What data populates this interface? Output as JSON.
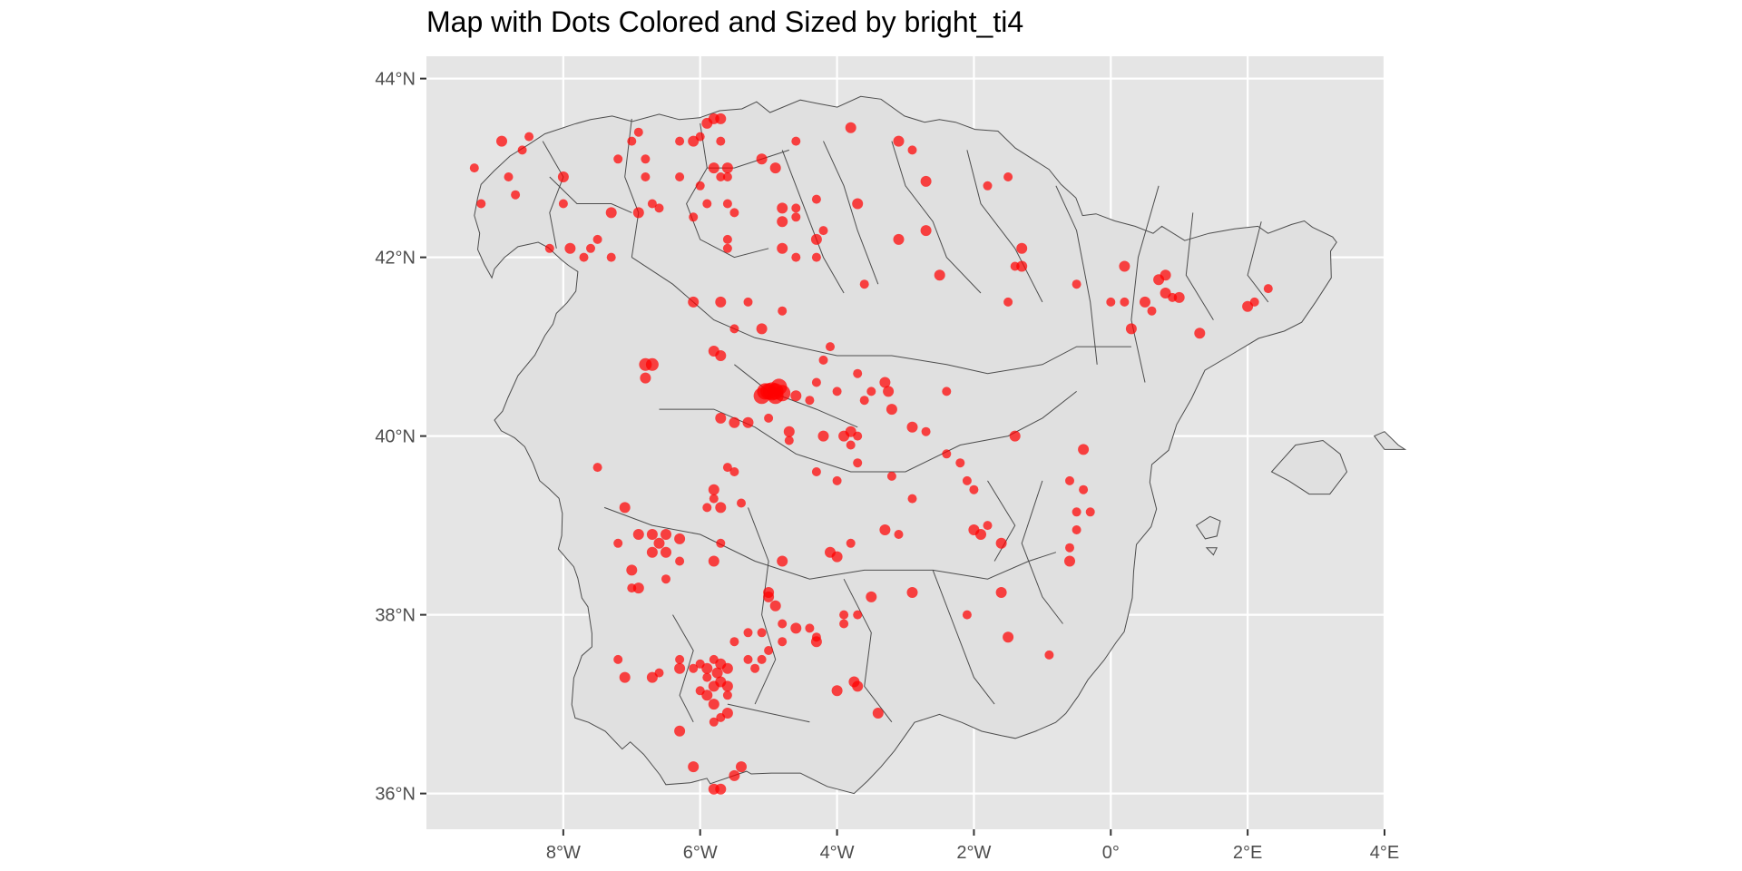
{
  "title": "Map with Dots Colored and Sized by bright_ti4",
  "colors": {
    "panel": "#e5e5e5",
    "grid": "#ffffff",
    "land": "#e0e0e0",
    "border": "#4d4d4d",
    "dot": "#ff0000",
    "text": "#4d4d4d"
  },
  "chart_data": {
    "type": "scatter",
    "title": "Map with Dots Colored and Sized by bright_ti4",
    "xlabel": "",
    "ylabel": "",
    "xlim": [
      -10.0,
      4.0
    ],
    "ylim": [
      35.6,
      44.25
    ],
    "x_ticks": [
      -8,
      -6,
      -4,
      -2,
      0,
      2,
      4
    ],
    "x_tick_labels": [
      "8°W",
      "6°W",
      "4°W",
      "2°W",
      "0°",
      "2°E",
      "4°E"
    ],
    "y_ticks": [
      36,
      38,
      40,
      42,
      44
    ],
    "y_tick_labels": [
      "36°N",
      "38°N",
      "40°N",
      "42°N",
      "44°N"
    ],
    "grid": true,
    "points": [
      [
        -9.3,
        43.0
      ],
      [
        -8.9,
        43.3
      ],
      [
        -8.6,
        43.2
      ],
      [
        -8.5,
        43.35
      ],
      [
        -8.8,
        42.9
      ],
      [
        -9.2,
        42.6
      ],
      [
        -8.7,
        42.7
      ],
      [
        -8.0,
        42.9
      ],
      [
        -8.0,
        42.6
      ],
      [
        -8.2,
        42.1
      ],
      [
        -7.9,
        42.1
      ],
      [
        -7.7,
        42.0
      ],
      [
        -7.6,
        42.1
      ],
      [
        -7.5,
        42.2
      ],
      [
        -7.3,
        42.0
      ],
      [
        -7.3,
        42.5
      ],
      [
        -6.9,
        42.5
      ],
      [
        -6.7,
        42.6
      ],
      [
        -6.6,
        42.55
      ],
      [
        -6.8,
        43.1
      ],
      [
        -6.8,
        42.9
      ],
      [
        -7.2,
        43.1
      ],
      [
        -7.0,
        43.3
      ],
      [
        -6.9,
        43.4
      ],
      [
        -6.1,
        43.3
      ],
      [
        -6.3,
        43.3
      ],
      [
        -6.0,
        43.35
      ],
      [
        -5.9,
        43.5
      ],
      [
        -5.8,
        43.55
      ],
      [
        -5.7,
        43.55
      ],
      [
        -5.7,
        43.3
      ],
      [
        -5.6,
        43.0
      ],
      [
        -5.8,
        43.0
      ],
      [
        -5.6,
        42.9
      ],
      [
        -5.7,
        42.9
      ],
      [
        -5.9,
        42.6
      ],
      [
        -6.0,
        42.8
      ],
      [
        -6.3,
        42.9
      ],
      [
        -6.1,
        42.45
      ],
      [
        -5.6,
        42.6
      ],
      [
        -5.5,
        42.5
      ],
      [
        -5.6,
        42.2
      ],
      [
        -5.6,
        42.1
      ],
      [
        -5.1,
        43.1
      ],
      [
        -4.9,
        43.0
      ],
      [
        -4.6,
        43.3
      ],
      [
        -4.8,
        42.55
      ],
      [
        -4.6,
        42.55
      ],
      [
        -4.8,
        42.4
      ],
      [
        -4.6,
        42.45
      ],
      [
        -4.8,
        42.1
      ],
      [
        -4.6,
        42.0
      ],
      [
        -4.3,
        42.0
      ],
      [
        -4.3,
        42.2
      ],
      [
        -4.2,
        42.3
      ],
      [
        -4.3,
        42.65
      ],
      [
        -3.8,
        43.45
      ],
      [
        -3.7,
        42.6
      ],
      [
        -3.1,
        43.3
      ],
      [
        -2.9,
        43.2
      ],
      [
        -2.7,
        42.85
      ],
      [
        -2.7,
        42.3
      ],
      [
        -3.1,
        42.2
      ],
      [
        -3.6,
        41.7
      ],
      [
        -2.5,
        41.8
      ],
      [
        -1.8,
        42.8
      ],
      [
        -1.5,
        42.9
      ],
      [
        -1.3,
        42.1
      ],
      [
        -1.4,
        41.9
      ],
      [
        -1.3,
        41.9
      ],
      [
        -1.5,
        41.5
      ],
      [
        -6.1,
        41.5
      ],
      [
        -5.7,
        41.5
      ],
      [
        -5.3,
        41.5
      ],
      [
        -5.1,
        41.2
      ],
      [
        -4.8,
        41.4
      ],
      [
        -6.7,
        40.8
      ],
      [
        -6.8,
        40.8
      ],
      [
        -6.8,
        40.65
      ],
      [
        -5.8,
        40.95
      ],
      [
        -5.7,
        40.9
      ],
      [
        -5.5,
        41.2
      ],
      [
        -4.1,
        41.0
      ],
      [
        -4.2,
        40.85
      ],
      [
        -3.7,
        40.7
      ],
      [
        -3.3,
        40.6
      ],
      [
        -3.25,
        40.5
      ],
      [
        -3.5,
        40.5
      ],
      [
        -3.6,
        40.4
      ],
      [
        -4.0,
        40.5
      ],
      [
        -4.3,
        40.6
      ],
      [
        -4.4,
        40.4
      ],
      [
        -4.6,
        40.45
      ],
      [
        -5.0,
        40.5
      ],
      [
        -4.9,
        40.45
      ],
      [
        -5.1,
        40.45
      ],
      [
        -4.95,
        40.5
      ],
      [
        -4.85,
        40.55
      ],
      [
        -5.05,
        40.5
      ],
      [
        -4.9,
        40.5
      ],
      [
        -4.8,
        40.48
      ],
      [
        -7.5,
        39.65
      ],
      [
        -7.1,
        39.2
      ],
      [
        -5.7,
        40.2
      ],
      [
        -5.5,
        40.15
      ],
      [
        -5.3,
        40.15
      ],
      [
        -5.0,
        40.2
      ],
      [
        -4.7,
        40.05
      ],
      [
        -4.7,
        39.95
      ],
      [
        -4.2,
        40.0
      ],
      [
        -3.9,
        40.0
      ],
      [
        -3.8,
        40.05
      ],
      [
        -3.7,
        40.0
      ],
      [
        -3.8,
        39.9
      ],
      [
        -3.7,
        39.7
      ],
      [
        -4.0,
        39.5
      ],
      [
        -4.3,
        39.6
      ],
      [
        -3.2,
        40.3
      ],
      [
        -2.9,
        40.1
      ],
      [
        -2.7,
        40.05
      ],
      [
        -2.4,
        40.5
      ],
      [
        -2.4,
        39.8
      ],
      [
        -2.2,
        39.7
      ],
      [
        -2.1,
        39.5
      ],
      [
        -2.0,
        39.4
      ],
      [
        -1.4,
        40.0
      ],
      [
        -0.4,
        39.85
      ],
      [
        -0.6,
        39.5
      ],
      [
        -0.4,
        39.4
      ],
      [
        -0.3,
        39.15
      ],
      [
        -0.5,
        39.15
      ],
      [
        -3.2,
        39.55
      ],
      [
        -2.9,
        39.3
      ],
      [
        -5.8,
        39.4
      ],
      [
        -5.8,
        39.3
      ],
      [
        -5.7,
        39.2
      ],
      [
        -5.9,
        39.2
      ],
      [
        -5.4,
        39.25
      ],
      [
        -5.6,
        39.65
      ],
      [
        -5.5,
        39.6
      ],
      [
        -6.9,
        38.9
      ],
      [
        -6.7,
        38.9
      ],
      [
        -6.5,
        38.9
      ],
      [
        -6.3,
        38.85
      ],
      [
        -6.6,
        38.8
      ],
      [
        -6.5,
        38.7
      ],
      [
        -6.7,
        38.7
      ],
      [
        -6.3,
        38.6
      ],
      [
        -6.5,
        38.4
      ],
      [
        -7.0,
        38.5
      ],
      [
        -6.9,
        38.3
      ],
      [
        -7.0,
        38.3
      ],
      [
        -7.2,
        38.8
      ],
      [
        -5.8,
        38.6
      ],
      [
        -5.7,
        38.8
      ],
      [
        -4.8,
        38.6
      ],
      [
        -4.0,
        38.65
      ],
      [
        -4.1,
        38.7
      ],
      [
        -3.8,
        38.8
      ],
      [
        -3.3,
        38.95
      ],
      [
        -3.1,
        38.9
      ],
      [
        -2.0,
        38.95
      ],
      [
        -1.9,
        38.9
      ],
      [
        -1.8,
        39.0
      ],
      [
        -1.6,
        38.8
      ],
      [
        -0.6,
        38.75
      ],
      [
        -0.6,
        38.6
      ],
      [
        -0.5,
        38.95
      ],
      [
        -5.0,
        38.2
      ],
      [
        -4.9,
        38.1
      ],
      [
        -5.0,
        38.25
      ],
      [
        -4.8,
        37.9
      ],
      [
        -4.6,
        37.85
      ],
      [
        -4.4,
        37.85
      ],
      [
        -4.3,
        37.75
      ],
      [
        -4.3,
        37.7
      ],
      [
        -3.9,
        38.0
      ],
      [
        -3.7,
        38.0
      ],
      [
        -3.5,
        38.2
      ],
      [
        -2.9,
        38.25
      ],
      [
        -3.9,
        37.9
      ],
      [
        -1.6,
        38.25
      ],
      [
        -2.1,
        38.0
      ],
      [
        -1.5,
        37.75
      ],
      [
        -0.9,
        37.55
      ],
      [
        -5.0,
        37.6
      ],
      [
        -5.1,
        37.5
      ],
      [
        -5.3,
        37.5
      ],
      [
        -5.5,
        37.7
      ],
      [
        -5.3,
        37.8
      ],
      [
        -5.1,
        37.8
      ],
      [
        -4.8,
        37.7
      ],
      [
        -5.2,
        37.4
      ],
      [
        -7.2,
        37.5
      ],
      [
        -7.1,
        37.3
      ],
      [
        -6.7,
        37.3
      ],
      [
        -6.6,
        37.35
      ],
      [
        -6.3,
        37.4
      ],
      [
        -6.3,
        37.5
      ],
      [
        -6.1,
        37.4
      ],
      [
        -6.0,
        37.45
      ],
      [
        -5.9,
        37.4
      ],
      [
        -5.8,
        37.5
      ],
      [
        -5.7,
        37.45
      ],
      [
        -5.6,
        37.4
      ],
      [
        -5.9,
        37.3
      ],
      [
        -5.75,
        37.35
      ],
      [
        -5.7,
        37.25
      ],
      [
        -5.6,
        37.2
      ],
      [
        -5.8,
        37.2
      ],
      [
        -6.0,
        37.15
      ],
      [
        -5.9,
        37.1
      ],
      [
        -5.8,
        37.0
      ],
      [
        -5.6,
        36.9
      ],
      [
        -5.7,
        36.85
      ],
      [
        -5.8,
        36.8
      ],
      [
        -6.3,
        36.7
      ],
      [
        -5.6,
        37.1
      ],
      [
        -4.0,
        37.15
      ],
      [
        -3.7,
        37.2
      ],
      [
        -3.75,
        37.25
      ],
      [
        -3.4,
        36.9
      ],
      [
        -6.1,
        36.3
      ],
      [
        -5.4,
        36.3
      ],
      [
        -5.5,
        36.2
      ],
      [
        -5.7,
        36.05
      ],
      [
        -5.8,
        36.05
      ],
      [
        0.2,
        41.9
      ],
      [
        0.5,
        41.5
      ],
      [
        0.3,
        41.2
      ],
      [
        -0.5,
        41.7
      ],
      [
        0.7,
        41.75
      ],
      [
        0.8,
        41.8
      ],
      [
        0.8,
        41.6
      ],
      [
        0.9,
        41.55
      ],
      [
        1.0,
        41.55
      ],
      [
        0.6,
        41.4
      ],
      [
        1.3,
        41.15
      ],
      [
        0.2,
        41.5
      ],
      [
        0.0,
        41.5
      ],
      [
        2.0,
        41.45
      ],
      [
        2.1,
        41.5
      ],
      [
        2.3,
        41.65
      ]
    ],
    "dot_sizes": [
      5,
      6,
      5,
      5,
      5,
      5,
      5,
      6,
      5,
      5,
      6,
      5,
      5,
      5,
      5,
      6,
      6,
      5,
      5,
      5,
      5,
      5,
      5,
      5,
      6,
      5,
      5,
      6,
      6,
      6,
      5,
      6,
      6,
      5,
      5,
      5,
      5,
      5,
      5,
      5,
      5,
      5,
      5,
      6,
      6,
      5,
      6,
      5,
      6,
      5,
      6,
      5,
      5,
      6,
      5,
      5,
      6,
      6,
      6,
      5,
      6,
      6,
      6,
      5,
      6,
      5,
      5,
      6,
      5,
      6,
      5,
      6,
      6,
      5,
      6,
      5,
      7,
      7,
      6,
      6,
      6,
      5,
      5,
      5,
      5,
      6,
      6,
      5,
      5,
      5,
      5,
      5,
      6,
      9,
      9,
      9,
      10,
      9,
      9,
      9,
      9,
      5,
      6,
      6,
      6,
      6,
      5,
      6,
      5,
      6,
      6,
      6,
      5,
      5,
      5,
      5,
      5,
      6,
      6,
      5,
      5,
      5,
      5,
      5,
      5,
      6,
      6,
      5,
      5,
      5,
      5,
      5,
      5,
      6,
      5,
      6,
      5,
      5,
      5,
      5,
      6,
      6,
      6,
      6,
      6,
      6,
      6,
      5,
      5,
      6,
      6,
      5,
      5,
      6,
      5,
      6,
      6,
      6,
      5,
      6,
      5,
      6,
      6,
      5,
      6,
      5,
      6,
      5,
      6,
      6,
      6,
      5,
      6,
      5,
      5,
      6,
      5,
      5,
      6,
      6,
      5,
      6,
      5,
      6,
      5,
      5,
      5,
      5,
      5,
      5,
      5,
      5,
      5,
      5,
      6,
      6,
      5,
      6,
      5,
      5,
      5,
      6,
      5,
      6,
      6,
      5,
      6,
      6,
      6,
      6,
      5,
      6,
      6,
      6,
      5,
      5,
      6,
      5,
      6,
      6,
      6,
      6,
      6,
      6,
      6,
      6,
      6,
      6,
      6,
      6,
      5,
      6,
      6,
      6,
      5,
      6,
      5,
      6,
      5,
      5,
      6,
      5,
      5
    ]
  }
}
